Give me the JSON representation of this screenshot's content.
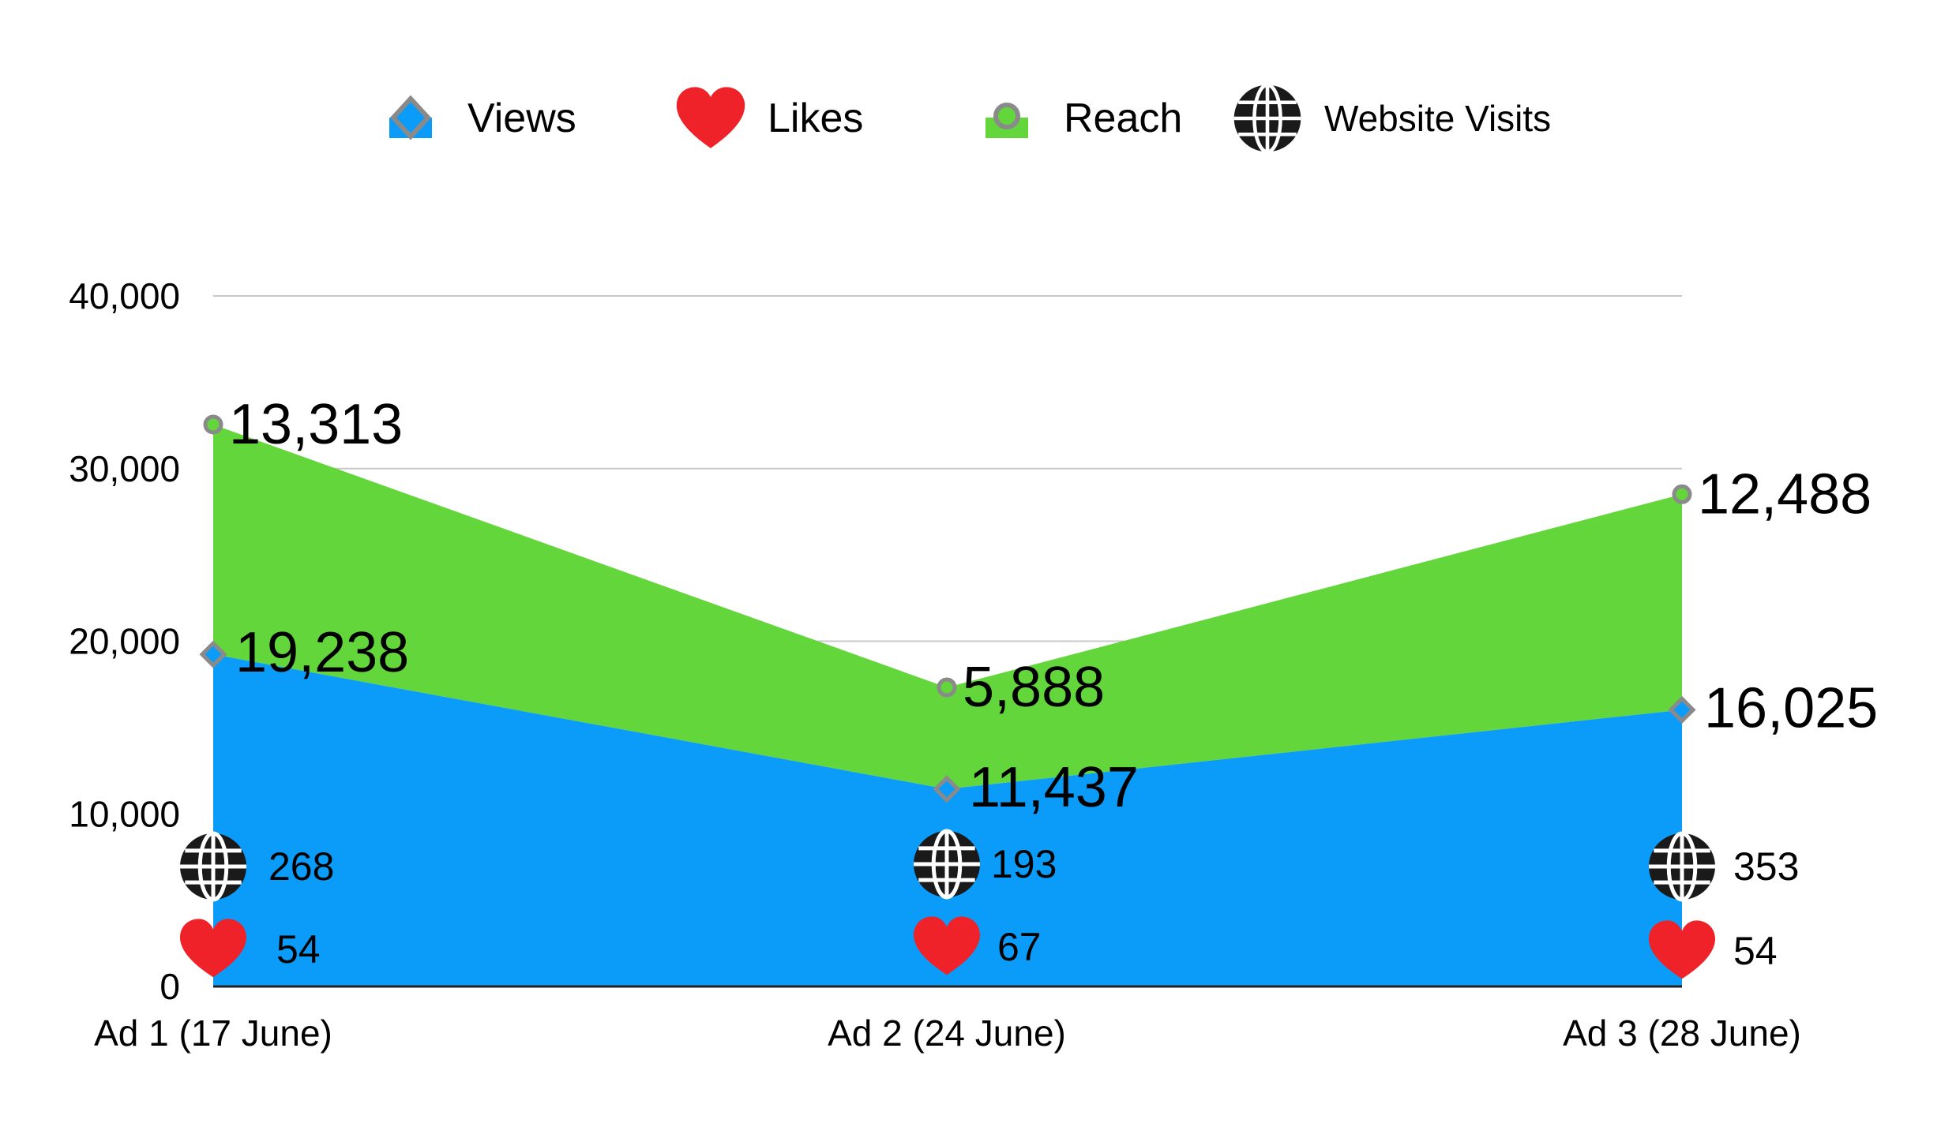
{
  "legend": {
    "views": "Views",
    "likes": "Likes",
    "reach": "Reach",
    "website_visits": "Website Visits"
  },
  "colors": {
    "views": "#0a9cf8",
    "reach": "#62d63a",
    "likes": "#ee2228",
    "website_visits": "#1a1a1a",
    "grid": "#c8c8c8",
    "marker_stroke": "#8a8a8a"
  },
  "chart_data": {
    "type": "area",
    "stacked": true,
    "categories": [
      "Ad 1 (17 June)",
      "Ad 2 (24 June)",
      "Ad 3 (28 June)"
    ],
    "series": [
      {
        "name": "Views",
        "values": [
          19238,
          11437,
          16025
        ],
        "labels": [
          "19,238",
          "11,437",
          "16,025"
        ]
      },
      {
        "name": "Reach",
        "values": [
          13313,
          5888,
          12488
        ],
        "labels": [
          "13,313",
          "5,888",
          "12,488"
        ]
      },
      {
        "name": "Website Visits",
        "values": [
          268,
          193,
          353
        ],
        "labels": [
          "268",
          "193",
          "353"
        ]
      },
      {
        "name": "Likes",
        "values": [
          54,
          67,
          54
        ],
        "labels": [
          "54",
          "67",
          "54"
        ]
      }
    ],
    "ylim": [
      0,
      40000
    ],
    "yticks": [
      0,
      10000,
      20000,
      30000,
      40000
    ],
    "ytick_labels": [
      "0",
      "10,000",
      "20,000",
      "30,000",
      "40,000"
    ],
    "grid": true,
    "legend_position": "top"
  }
}
